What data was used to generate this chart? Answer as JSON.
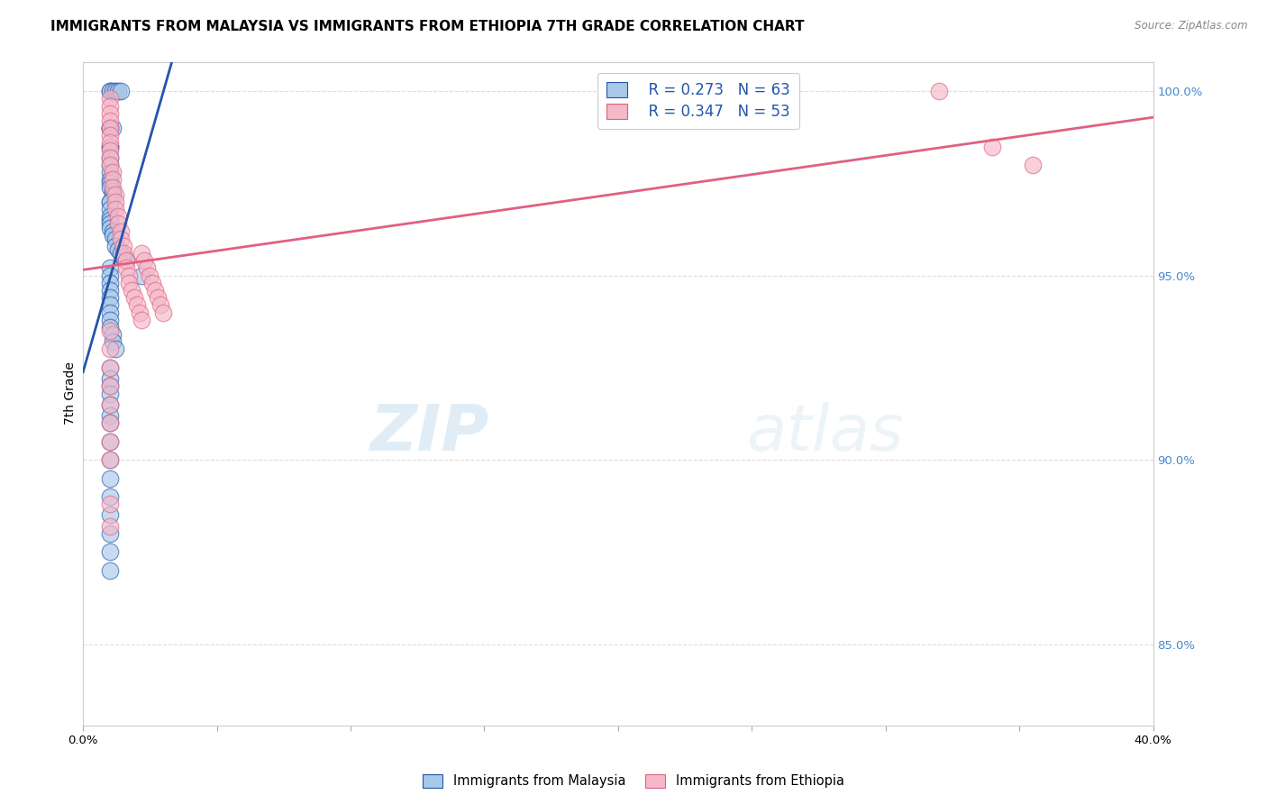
{
  "title": "IMMIGRANTS FROM MALAYSIA VS IMMIGRANTS FROM ETHIOPIA 7TH GRADE CORRELATION CHART",
  "source": "Source: ZipAtlas.com",
  "legend_label1": "Immigrants from Malaysia",
  "legend_label2": "Immigrants from Ethiopia",
  "color_malaysia": "#a8c8e8",
  "color_ethiopia": "#f4b8c8",
  "line_color_malaysia": "#2255aa",
  "line_color_ethiopia": "#e06080",
  "watermark_zip": "ZIP",
  "watermark_atlas": "atlas",
  "malaysia_x": [
    0.01,
    0.01,
    0.011,
    0.012,
    0.013,
    0.014,
    0.01,
    0.01,
    0.01,
    0.011,
    0.01,
    0.01,
    0.01,
    0.01,
    0.01,
    0.01,
    0.01,
    0.01,
    0.011,
    0.011,
    0.01,
    0.01,
    0.01,
    0.01,
    0.01,
    0.01,
    0.01,
    0.011,
    0.011,
    0.012,
    0.012,
    0.013,
    0.014,
    0.015,
    0.016,
    0.01,
    0.01,
    0.01,
    0.01,
    0.01,
    0.01,
    0.01,
    0.01,
    0.01,
    0.011,
    0.011,
    0.012,
    0.01,
    0.01,
    0.01,
    0.01,
    0.01,
    0.01,
    0.01,
    0.01,
    0.01,
    0.01,
    0.01,
    0.01,
    0.01,
    0.01,
    0.01,
    0.022
  ],
  "malaysia_y": [
    1.0,
    1.0,
    1.0,
    1.0,
    1.0,
    1.0,
    0.99,
    0.99,
    0.99,
    0.99,
    0.985,
    0.985,
    0.982,
    0.98,
    0.978,
    0.976,
    0.975,
    0.974,
    0.973,
    0.972,
    0.97,
    0.97,
    0.968,
    0.966,
    0.965,
    0.964,
    0.963,
    0.962,
    0.961,
    0.96,
    0.958,
    0.957,
    0.956,
    0.955,
    0.954,
    0.952,
    0.95,
    0.948,
    0.946,
    0.944,
    0.942,
    0.94,
    0.938,
    0.936,
    0.934,
    0.932,
    0.93,
    0.925,
    0.922,
    0.92,
    0.918,
    0.915,
    0.912,
    0.91,
    0.905,
    0.9,
    0.895,
    0.89,
    0.885,
    0.88,
    0.875,
    0.87,
    0.95
  ],
  "ethiopia_x": [
    0.01,
    0.01,
    0.01,
    0.01,
    0.01,
    0.01,
    0.01,
    0.01,
    0.01,
    0.01,
    0.011,
    0.011,
    0.011,
    0.012,
    0.012,
    0.012,
    0.013,
    0.013,
    0.014,
    0.014,
    0.015,
    0.015,
    0.016,
    0.016,
    0.017,
    0.017,
    0.018,
    0.019,
    0.02,
    0.021,
    0.022,
    0.022,
    0.023,
    0.024,
    0.025,
    0.026,
    0.027,
    0.028,
    0.029,
    0.03,
    0.01,
    0.01,
    0.01,
    0.01,
    0.01,
    0.01,
    0.01,
    0.01,
    0.01,
    0.01,
    0.32,
    0.34,
    0.355
  ],
  "ethiopia_y": [
    0.998,
    0.996,
    0.994,
    0.992,
    0.99,
    0.988,
    0.986,
    0.984,
    0.982,
    0.98,
    0.978,
    0.976,
    0.974,
    0.972,
    0.97,
    0.968,
    0.966,
    0.964,
    0.962,
    0.96,
    0.958,
    0.956,
    0.954,
    0.952,
    0.95,
    0.948,
    0.946,
    0.944,
    0.942,
    0.94,
    0.938,
    0.956,
    0.954,
    0.952,
    0.95,
    0.948,
    0.946,
    0.944,
    0.942,
    0.94,
    0.935,
    0.93,
    0.925,
    0.92,
    0.915,
    0.91,
    0.905,
    0.9,
    0.888,
    0.882,
    1.0,
    0.985,
    0.98
  ],
  "xlim": [
    0.0,
    0.4
  ],
  "ylim": [
    0.828,
    1.008
  ],
  "right_yticks": [
    1.0,
    0.95,
    0.9,
    0.85
  ],
  "right_ytick_labels": [
    "100.0%",
    "95.0%",
    "90.0%",
    "85.0%"
  ],
  "gridline_color": "#dddddd",
  "background_color": "#ffffff",
  "title_fontsize": 11,
  "axis_label_fontsize": 10,
  "tick_fontsize": 9.5,
  "marker_size": 180
}
